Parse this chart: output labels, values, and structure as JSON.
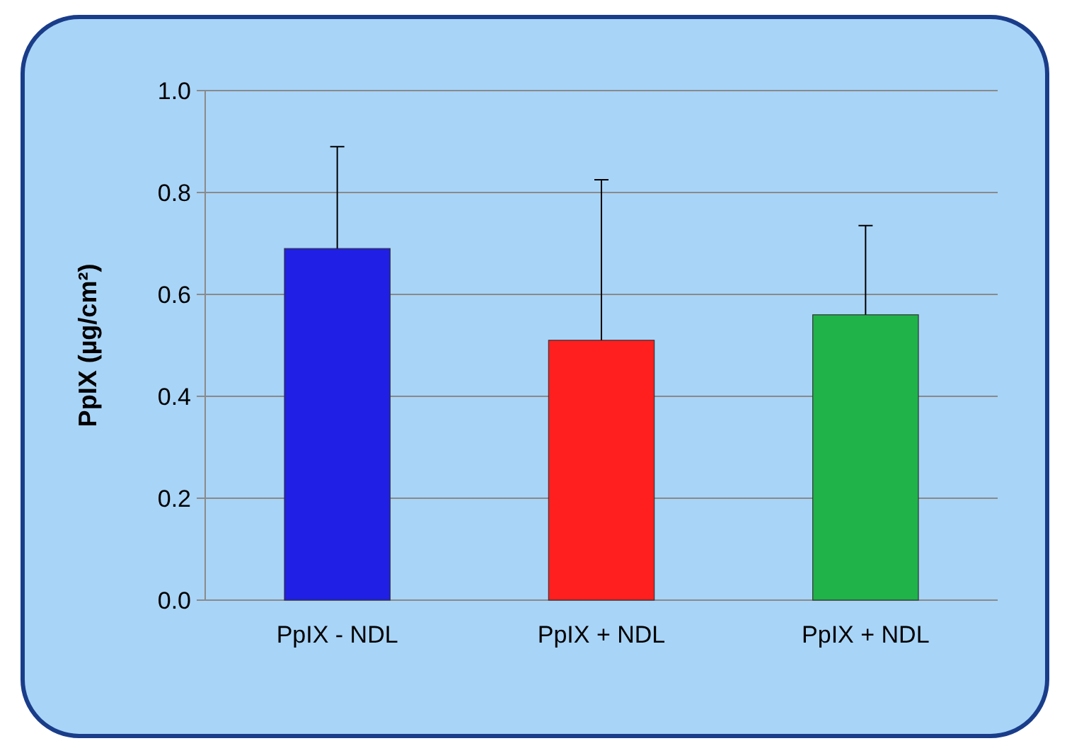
{
  "chart_data": {
    "type": "bar",
    "ylabel": "PpIX (µg/cm²)",
    "categories": [
      "PpIX - NDL",
      "PpIX + NDL",
      "PpIX + NDL"
    ],
    "values": [
      0.69,
      0.51,
      0.56
    ],
    "colors": [
      "#1f1fe6",
      "#ff1f1f",
      "#1fb34a"
    ],
    "errors": [
      [
        0.69,
        0.89
      ],
      [
        0.51,
        0.825
      ],
      [
        0.56,
        0.735
      ]
    ],
    "ylim": [
      0,
      1
    ],
    "yticks": [
      {
        "value": 0,
        "label": "0.0"
      },
      {
        "value": 0.2,
        "label": "0.2"
      },
      {
        "value": 0.4,
        "label": "0.4"
      },
      {
        "value": 0.6,
        "label": "0.6"
      },
      {
        "value": 0.8,
        "label": "0.8"
      },
      {
        "value": 1,
        "label": "1.0"
      }
    ],
    "grid": "y"
  }
}
